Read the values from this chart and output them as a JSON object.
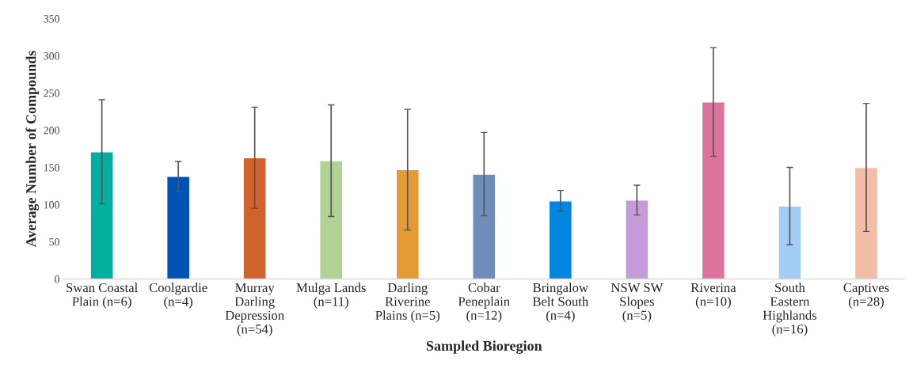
{
  "chart_data": {
    "type": "bar",
    "xlabel": "Sampled Bioregion",
    "ylabel": "Average Number of Compounds",
    "categories": [
      "Swan Coastal\nPlain (n=6)",
      "Coolgardie\n(n=4)",
      "Murray\nDarling\nDepression\n(n=54)",
      "Mulga Lands\n(n=11)",
      "Darling\nRiverine\nPlains (n=5)",
      "Cobar\nPeneplain\n(n=12)",
      "Bringalow\nBelt South\n(n=4)",
      "NSW SW\nSlopes\n(n=5)",
      "Riverina\n(n=10)",
      "South\nEastern\nHighlands\n(n=16)",
      "Captives\n(n=28)"
    ],
    "values": [
      171,
      138,
      163,
      159,
      147,
      141,
      105,
      106,
      238,
      98,
      150
    ],
    "errors": [
      70,
      20,
      68,
      75,
      81,
      56,
      14,
      20,
      73,
      52,
      86
    ],
    "colors": [
      "#00b09f",
      "#0051b5",
      "#d0622d",
      "#b2d195",
      "#e49a35",
      "#6e8db8",
      "#0086e0",
      "#c59ad9",
      "#dc739f",
      "#a3cdf4",
      "#f2bea6"
    ],
    "ylim": [
      0,
      350
    ],
    "yticks": [
      0,
      50,
      100,
      150,
      200,
      250,
      300,
      350
    ],
    "grid": false
  }
}
